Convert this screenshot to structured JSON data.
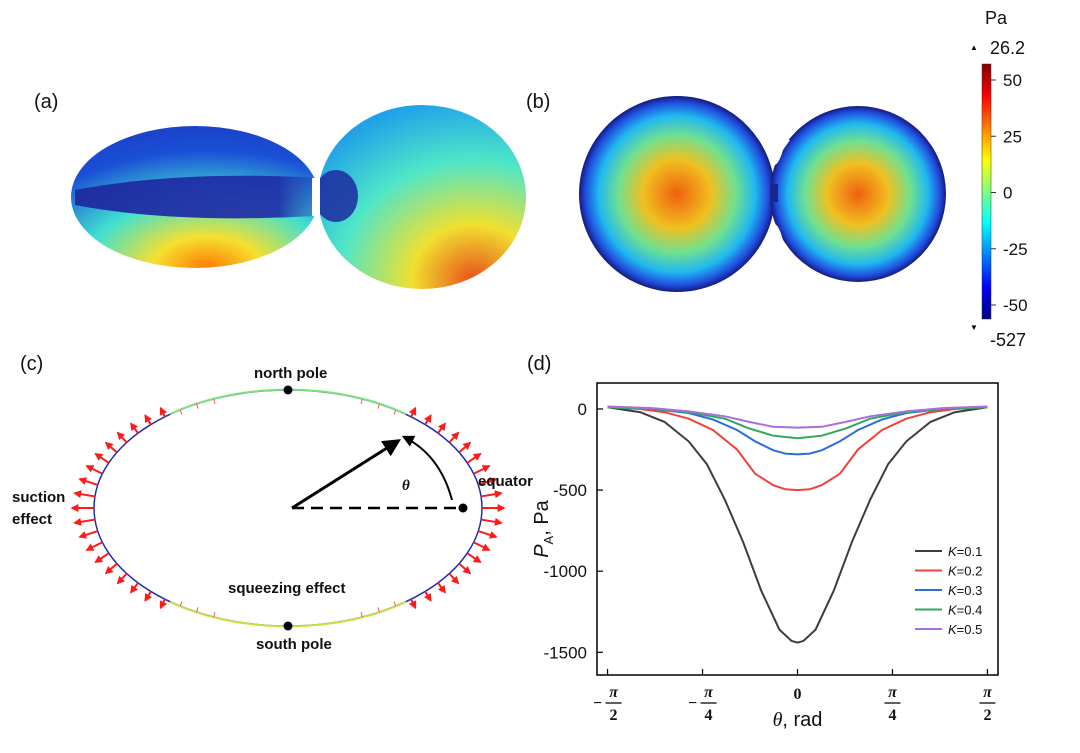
{
  "panels": {
    "a": {
      "label": "(a)"
    },
    "b": {
      "label": "(b)"
    },
    "c": {
      "label": "(c)",
      "north_pole": "north pole",
      "south_pole": "south pole",
      "equator": "equator",
      "suction_1": "suction",
      "suction_2": "effect",
      "squeezing": "squeezing  effect",
      "theta": "θ"
    },
    "d": {
      "label": "(d)"
    }
  },
  "colorbar": {
    "unit": "Pa",
    "max_value": "26.2",
    "min_value": "-527",
    "ticks": [
      "50",
      "25",
      "0",
      "-25",
      "-50"
    ],
    "colormap": "jet",
    "colors": [
      "#7f0000",
      "#ff0000",
      "#ff7f00",
      "#ffff00",
      "#7fff7f",
      "#00ffff",
      "#007fff",
      "#0000ff",
      "#00007f"
    ]
  },
  "chart_data": {
    "type": "line",
    "xlabel_symbol": "θ",
    "xlabel_unit": ", rad",
    "ylabel_main": "P",
    "ylabel_sub": "A",
    "ylabel_unit": ", Pa",
    "xlim": [
      -1.6581,
      1.6581
    ],
    "ylim": [
      -1640,
      160
    ],
    "y_ticks": [
      0,
      -500,
      -1000,
      -1500
    ],
    "y_tick_labels": [
      "0",
      "-500",
      "-1000",
      "-1500"
    ],
    "x_ticks": [
      -1.5708,
      -0.7854,
      0,
      0.7854,
      1.5708
    ],
    "x_tick_labels": [
      {
        "sign": "−",
        "num": "π",
        "den": "2"
      },
      {
        "sign": "−",
        "num": "π",
        "den": "4"
      },
      {
        "sign": "",
        "num": "0",
        "den": ""
      },
      {
        "sign": "",
        "num": "π",
        "den": "4"
      },
      {
        "sign": "",
        "num": "π",
        "den": "2"
      }
    ],
    "legend_position": "bottom-right",
    "series": [
      {
        "name": "K=0.1",
        "name_k": "K",
        "name_v": "=0.1",
        "color": "#3d3d3d",
        "x": [
          -1.5708,
          -1.3,
          -1.1,
          -0.9,
          -0.75,
          -0.6,
          -0.45,
          -0.3,
          -0.15,
          -0.05,
          0,
          0.05,
          0.15,
          0.3,
          0.45,
          0.6,
          0.75,
          0.9,
          1.1,
          1.3,
          1.5708
        ],
        "y": [
          10,
          -20,
          -80,
          -200,
          -340,
          -560,
          -820,
          -1120,
          -1360,
          -1430,
          -1440,
          -1430,
          -1360,
          -1120,
          -820,
          -560,
          -340,
          -200,
          -80,
          -20,
          10
        ]
      },
      {
        "name": "K=0.2",
        "name_k": "K",
        "name_v": "=0.2",
        "color": "#f0413b",
        "x": [
          -1.5708,
          -1.3,
          -1.1,
          -0.9,
          -0.7,
          -0.5,
          -0.35,
          -0.2,
          -0.1,
          0,
          0.1,
          0.2,
          0.35,
          0.5,
          0.7,
          0.9,
          1.1,
          1.3,
          1.5708
        ],
        "y": [
          10,
          0,
          -20,
          -60,
          -130,
          -250,
          -400,
          -470,
          -495,
          -500,
          -495,
          -470,
          -400,
          -250,
          -130,
          -60,
          -20,
          0,
          10
        ]
      },
      {
        "name": "K=0.3",
        "name_k": "K",
        "name_v": "=0.3",
        "color": "#2a6fd6",
        "x": [
          -1.5708,
          -1.2,
          -0.9,
          -0.7,
          -0.5,
          -0.35,
          -0.2,
          -0.1,
          0,
          0.1,
          0.2,
          0.35,
          0.5,
          0.7,
          0.9,
          1.2,
          1.5708
        ],
        "y": [
          10,
          0,
          -25,
          -65,
          -130,
          -200,
          -255,
          -275,
          -280,
          -275,
          -255,
          -200,
          -130,
          -65,
          -25,
          0,
          10
        ]
      },
      {
        "name": "K=0.4",
        "name_k": "K",
        "name_v": "=0.4",
        "color": "#2ea85a",
        "x": [
          -1.5708,
          -1.2,
          -0.9,
          -0.6,
          -0.4,
          -0.2,
          0,
          0.2,
          0.4,
          0.6,
          0.9,
          1.2,
          1.5708
        ],
        "y": [
          10,
          0,
          -20,
          -60,
          -120,
          -165,
          -180,
          -165,
          -120,
          -60,
          -20,
          0,
          10
        ]
      },
      {
        "name": "K=0.5",
        "name_k": "K",
        "name_v": "=0.5",
        "color": "#a86ee0",
        "x": [
          -1.5708,
          -1.2,
          -0.9,
          -0.6,
          -0.4,
          -0.2,
          0,
          0.2,
          0.4,
          0.6,
          0.9,
          1.2,
          1.5708
        ],
        "y": [
          15,
          5,
          -15,
          -45,
          -80,
          -110,
          -115,
          -110,
          -80,
          -45,
          -15,
          5,
          15
        ]
      }
    ]
  }
}
